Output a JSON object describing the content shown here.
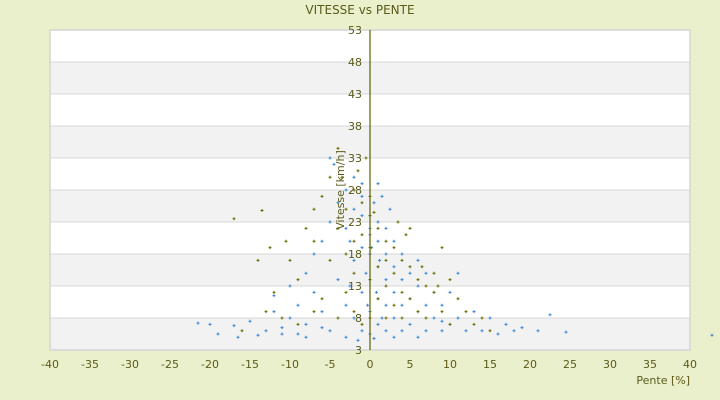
{
  "chart_data": {
    "type": "scatter",
    "title": "VITESSE vs PENTE",
    "xlabel": "Pente [%]",
    "ylabel": "Vitesse [km/h]",
    "xlim": [
      -40,
      40
    ],
    "ylim": [
      3,
      53
    ],
    "xticks": [
      -40,
      -35,
      -30,
      -25,
      -20,
      -15,
      -10,
      -5,
      0,
      5,
      10,
      15,
      20,
      25,
      30,
      35,
      40
    ],
    "yticks": [
      3,
      8,
      13,
      18,
      23,
      28,
      33,
      38,
      43,
      48,
      53
    ],
    "grid": "horizontal alternating bands",
    "legend": "none",
    "colors": {
      "background": "#ebf0cc",
      "plot_band_light": "#ffffff",
      "plot_band_dark": "#f2f2f2",
      "text": "#5a5a1a",
      "axis": "#5a6000"
    },
    "series": [
      {
        "color": "#3b86d4",
        "marker": "plus",
        "points": [
          [
            -21.5,
            7.2
          ],
          [
            -19,
            5.5
          ],
          [
            -20,
            7
          ],
          [
            -17,
            6.8
          ],
          [
            -16.5,
            5
          ],
          [
            -15,
            7.5
          ],
          [
            -14,
            5.3
          ],
          [
            -13,
            6
          ],
          [
            -12,
            9
          ],
          [
            -12,
            11.5
          ],
          [
            -11,
            6.5
          ],
          [
            -10,
            8
          ],
          [
            -10,
            13
          ],
          [
            -9,
            10
          ],
          [
            -9,
            5.5
          ],
          [
            -8,
            7
          ],
          [
            -8,
            15
          ],
          [
            -7,
            12
          ],
          [
            -7,
            18
          ],
          [
            -6,
            9
          ],
          [
            -6,
            20
          ],
          [
            -5,
            6
          ],
          [
            -5,
            23
          ],
          [
            -5,
            33
          ],
          [
            -4.5,
            32
          ],
          [
            -4,
            14
          ],
          [
            -4,
            26
          ],
          [
            -3,
            10
          ],
          [
            -3,
            22
          ],
          [
            -3,
            28
          ],
          [
            -2,
            8
          ],
          [
            -2,
            17
          ],
          [
            -2,
            25
          ],
          [
            -2,
            30
          ],
          [
            -1,
            6
          ],
          [
            -1,
            12
          ],
          [
            -1,
            19
          ],
          [
            -1,
            24
          ],
          [
            -1,
            27
          ],
          [
            0,
            5.5
          ],
          [
            0,
            9
          ],
          [
            0,
            14
          ],
          [
            0,
            18
          ],
          [
            0,
            21
          ],
          [
            0,
            24
          ],
          [
            0.5,
            26
          ],
          [
            1,
            7
          ],
          [
            1,
            11
          ],
          [
            1,
            16
          ],
          [
            1,
            20
          ],
          [
            1,
            23
          ],
          [
            1.5,
            27
          ],
          [
            2,
            6
          ],
          [
            2,
            10
          ],
          [
            2,
            14
          ],
          [
            2,
            18
          ],
          [
            2,
            22
          ],
          [
            3,
            8
          ],
          [
            3,
            12
          ],
          [
            3,
            16
          ],
          [
            3,
            20
          ],
          [
            4,
            6
          ],
          [
            4,
            10
          ],
          [
            4,
            14
          ],
          [
            4,
            18
          ],
          [
            5,
            7
          ],
          [
            5,
            11
          ],
          [
            5,
            15
          ],
          [
            6,
            9
          ],
          [
            6,
            13
          ],
          [
            6,
            17
          ],
          [
            7,
            6
          ],
          [
            7,
            10
          ],
          [
            7,
            15
          ],
          [
            8,
            8
          ],
          [
            8,
            12
          ],
          [
            9,
            6
          ],
          [
            9,
            10
          ],
          [
            10,
            7
          ],
          [
            10,
            12
          ],
          [
            11,
            8
          ],
          [
            11,
            15
          ],
          [
            12,
            6
          ],
          [
            13,
            9
          ],
          [
            14,
            6
          ],
          [
            15,
            8
          ],
          [
            16,
            5.5
          ],
          [
            17,
            7
          ],
          [
            18,
            6
          ],
          [
            19,
            6.5
          ],
          [
            21,
            6
          ],
          [
            22.5,
            8.5
          ],
          [
            24.5,
            5.8
          ],
          [
            -1.5,
            4.5
          ],
          [
            0.5,
            4.8
          ],
          [
            3,
            5
          ],
          [
            -3,
            5
          ],
          [
            6,
            5
          ],
          [
            -6,
            6.5
          ],
          [
            1.5,
            8
          ],
          [
            -0.5,
            15
          ],
          [
            0.2,
            19
          ],
          [
            2.5,
            25
          ],
          [
            -2.5,
            13
          ],
          [
            1,
            29
          ],
          [
            -1,
            29
          ],
          [
            0,
            22
          ],
          [
            0.8,
            12
          ],
          [
            -0.3,
            10
          ],
          [
            2,
            8
          ],
          [
            -8,
            5
          ],
          [
            -11,
            5.5
          ],
          [
            7,
            8
          ],
          [
            9,
            7.5
          ],
          [
            4,
            8
          ],
          [
            -2.5,
            20
          ],
          [
            1.2,
            17
          ],
          [
            42.75,
            5.3
          ]
        ]
      },
      {
        "color": "#6b6b00",
        "marker": "plus",
        "points": [
          [
            -17,
            23.5
          ],
          [
            -13.5,
            24.8
          ],
          [
            -14,
            17
          ],
          [
            -12.5,
            19
          ],
          [
            -10,
            17
          ],
          [
            -9,
            14
          ],
          [
            -8,
            22
          ],
          [
            -7,
            25
          ],
          [
            -7,
            20
          ],
          [
            -6,
            27
          ],
          [
            -6,
            11
          ],
          [
            -5,
            17
          ],
          [
            -5,
            30
          ],
          [
            -4,
            34.5
          ],
          [
            -4,
            22
          ],
          [
            -4,
            8
          ],
          [
            -3,
            25
          ],
          [
            -3,
            18
          ],
          [
            -3,
            12
          ],
          [
            -2,
            28
          ],
          [
            -2,
            20
          ],
          [
            -2,
            15
          ],
          [
            -2,
            9
          ],
          [
            -1,
            26
          ],
          [
            -1,
            21
          ],
          [
            -1,
            7
          ],
          [
            0,
            27
          ],
          [
            0,
            24
          ],
          [
            0,
            19
          ],
          [
            0,
            14
          ],
          [
            0,
            8
          ],
          [
            0.5,
            24.5
          ],
          [
            1,
            22
          ],
          [
            1,
            16
          ],
          [
            1,
            11
          ],
          [
            2,
            20
          ],
          [
            2,
            17
          ],
          [
            2,
            13
          ],
          [
            2,
            8
          ],
          [
            3,
            19
          ],
          [
            3,
            15
          ],
          [
            3,
            10
          ],
          [
            4,
            17
          ],
          [
            4,
            12
          ],
          [
            4,
            8
          ],
          [
            5,
            16
          ],
          [
            5,
            11
          ],
          [
            6,
            14
          ],
          [
            6,
            9
          ],
          [
            7,
            13
          ],
          [
            7,
            8
          ],
          [
            8,
            12
          ],
          [
            8,
            15
          ],
          [
            9,
            19
          ],
          [
            9,
            9
          ],
          [
            10,
            14
          ],
          [
            10,
            7
          ],
          [
            11,
            11
          ],
          [
            12,
            9
          ],
          [
            13,
            7
          ],
          [
            14,
            8
          ],
          [
            15,
            6
          ],
          [
            -16,
            6
          ],
          [
            -13,
            9
          ],
          [
            -11,
            8
          ],
          [
            -9,
            7
          ],
          [
            -7,
            9
          ],
          [
            -1.5,
            31
          ],
          [
            -12,
            12
          ],
          [
            -10.5,
            20
          ],
          [
            3.5,
            23
          ],
          [
            4.5,
            21
          ],
          [
            8.5,
            13
          ],
          [
            6.5,
            16
          ],
          [
            5,
            22
          ],
          [
            -0.5,
            33
          ],
          [
            -3.5,
            30
          ]
        ]
      }
    ]
  }
}
